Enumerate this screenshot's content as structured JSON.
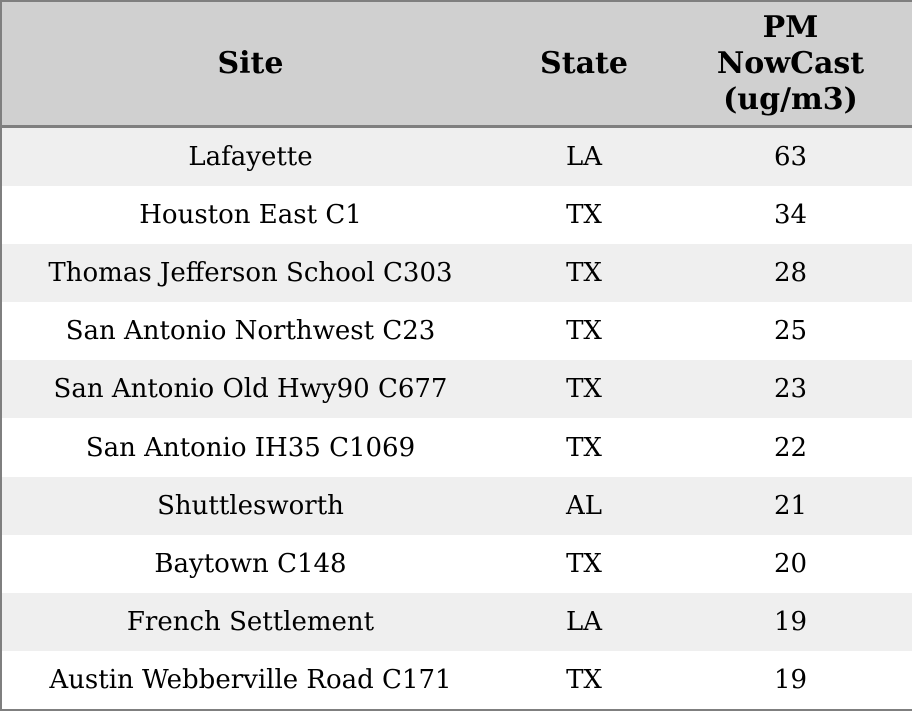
{
  "colors": {
    "header_bg": "#d0d0d0",
    "row_alt_bg": "#efefef",
    "row_bg": "#ffffff",
    "border": "#7f7f7f",
    "text": "#000000"
  },
  "chart_data": {
    "type": "table",
    "columns": [
      "Site",
      "State",
      "PM NowCast (ug/m3)"
    ],
    "rows": [
      [
        "Lafayette",
        "LA",
        63
      ],
      [
        "Houston East C1",
        "TX",
        34
      ],
      [
        "Thomas Jefferson School C303",
        "TX",
        28
      ],
      [
        "San Antonio Northwest C23",
        "TX",
        25
      ],
      [
        "San Antonio Old Hwy90 C677",
        "TX",
        23
      ],
      [
        "San Antonio IH35 C1069",
        "TX",
        22
      ],
      [
        "Shuttlesworth",
        "AL",
        21
      ],
      [
        "Baytown C148",
        "TX",
        20
      ],
      [
        "French Settlement",
        "LA",
        19
      ],
      [
        "Austin Webberville Road C171",
        "TX",
        19
      ]
    ]
  }
}
